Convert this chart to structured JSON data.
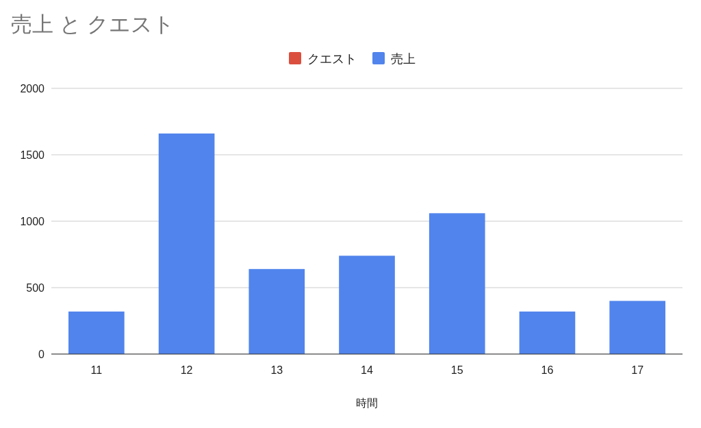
{
  "chart_data": {
    "type": "bar",
    "title": "売上 と クエスト",
    "xlabel": "時間",
    "categories": [
      "11",
      "12",
      "13",
      "14",
      "15",
      "16",
      "17"
    ],
    "series": [
      {
        "name": "クエスト",
        "color": "#db4f3f",
        "values": [
          null,
          null,
          null,
          null,
          null,
          null,
          null
        ]
      },
      {
        "name": "売上",
        "color": "#5184ec",
        "values": [
          320,
          1660,
          640,
          740,
          1060,
          320,
          400
        ]
      }
    ],
    "ylim": [
      0,
      2000
    ],
    "yticks": [
      0,
      500,
      1000,
      1500,
      2000
    ],
    "grid": "y",
    "legend": "top"
  }
}
